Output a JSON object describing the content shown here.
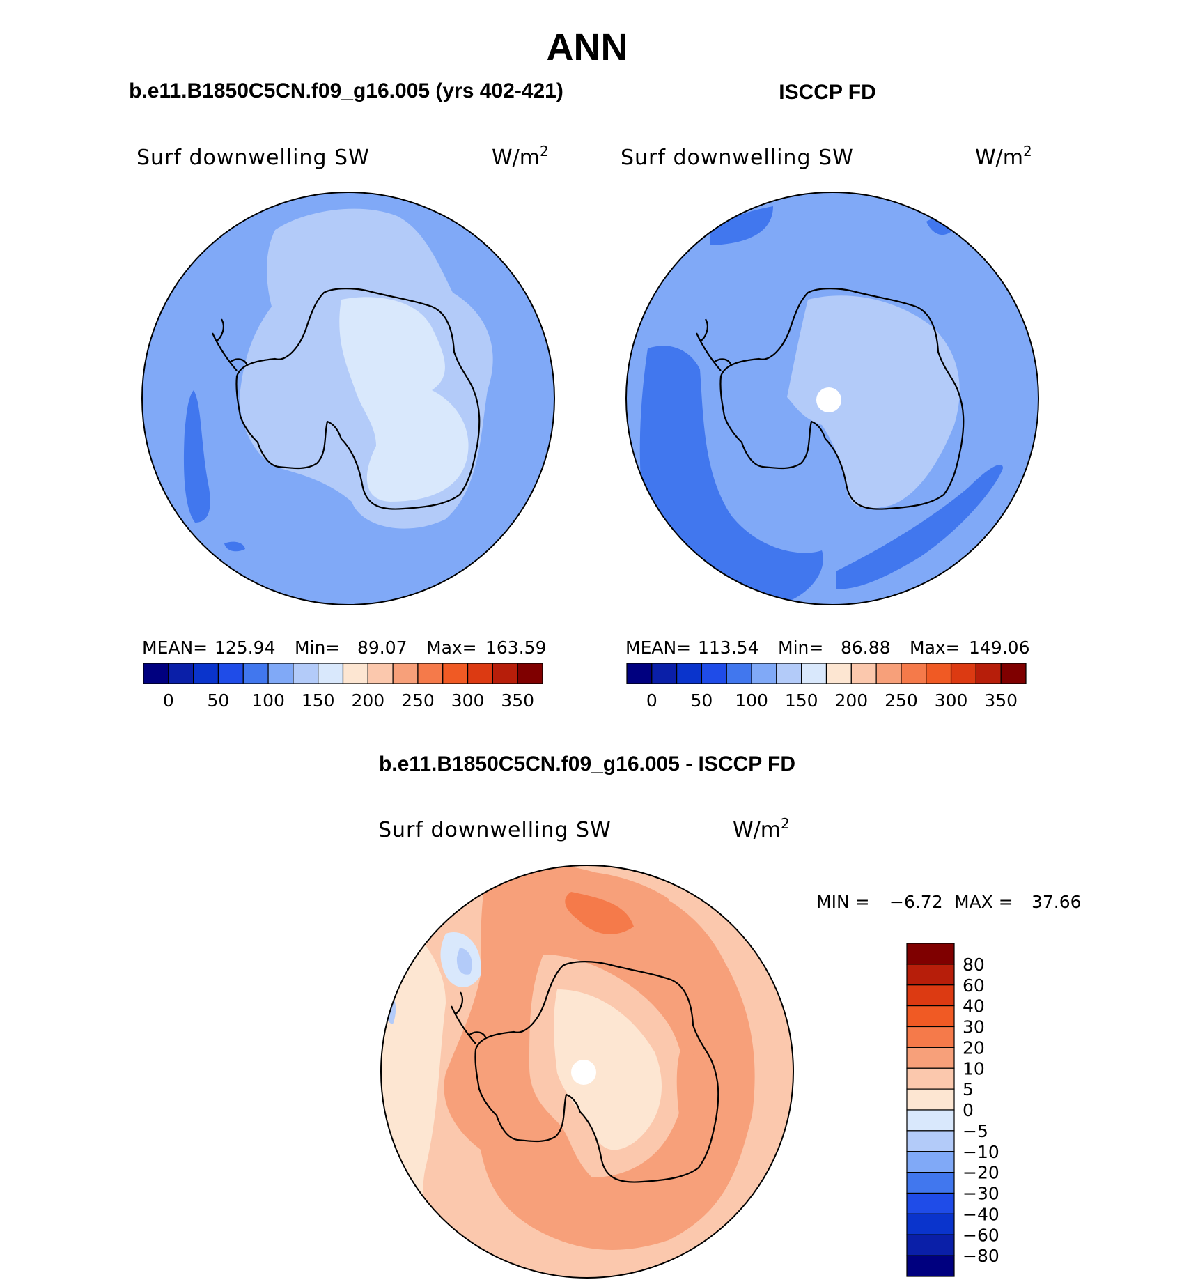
{
  "chart_data": {
    "type": "contour_map",
    "title": "ANN",
    "projection": "south polar stereographic",
    "panels": [
      {
        "id": "model",
        "title": "b.e11.B1850C5CN.f09_g16.005 (yrs 402-421)",
        "variable": "Surf downwelling SW",
        "units_base": "W/m",
        "units_exp": "2",
        "stats_text": {
          "mean_label": "MEAN=",
          "mean": "125.94",
          "min_label": "Min=",
          "min": "89.07",
          "max_label": "Max=",
          "max": "163.59"
        },
        "colorbar_levels": [
          "0",
          "50",
          "100",
          "150",
          "200",
          "250",
          "300",
          "350"
        ],
        "colors": [
          "#00007f",
          "#0a1fa8",
          "#0a34cc",
          "#1f4ce8",
          "#4177ee",
          "#80a9f7",
          "#b3cbf9",
          "#d9e8fc",
          "#fde6d2",
          "#fbc8ad",
          "#f7a07a",
          "#f57a4a",
          "#f05a24",
          "#dc3a12",
          "#b71e0a",
          "#7f0000"
        ]
      },
      {
        "id": "obs",
        "title": "ISCCP FD",
        "variable": "Surf downwelling SW",
        "units_base": "W/m",
        "units_exp": "2",
        "stats_text": {
          "mean_label": "MEAN=",
          "mean": "113.54",
          "min_label": "Min=",
          "min": "86.88",
          "max_label": "Max=",
          "max": "149.06"
        },
        "colorbar_levels": [
          "0",
          "50",
          "100",
          "150",
          "200",
          "250",
          "300",
          "350"
        ],
        "colors": [
          "#00007f",
          "#0a1fa8",
          "#0a34cc",
          "#1f4ce8",
          "#4177ee",
          "#80a9f7",
          "#b3cbf9",
          "#d9e8fc",
          "#fde6d2",
          "#fbc8ad",
          "#f7a07a",
          "#f57a4a",
          "#f05a24",
          "#dc3a12",
          "#b71e0a",
          "#7f0000"
        ]
      },
      {
        "id": "diff",
        "title": "b.e11.B1850C5CN.f09_g16.005 - ISCCP FD",
        "variable": "Surf downwelling SW",
        "units_base": "W/m",
        "units_exp": "2",
        "stats_text": {
          "min_label": "MIN =",
          "min": "−6.72",
          "max_label": "MAX =",
          "max": "37.66"
        },
        "colorbar_levels": [
          "80",
          "60",
          "40",
          "30",
          "20",
          "10",
          "5",
          "0",
          "−5",
          "−10",
          "−20",
          "−30",
          "−40",
          "−60",
          "−80"
        ],
        "colors_top_to_bottom": [
          "#7f0000",
          "#b71e0a",
          "#dc3a12",
          "#f05a24",
          "#f57a4a",
          "#f7a07a",
          "#fbc8ad",
          "#fde6d2",
          "#d9e8fc",
          "#b3cbf9",
          "#80a9f7",
          "#4177ee",
          "#1f4ce8",
          "#0a34cc",
          "#0a1fa8",
          "#00007f"
        ]
      }
    ]
  }
}
